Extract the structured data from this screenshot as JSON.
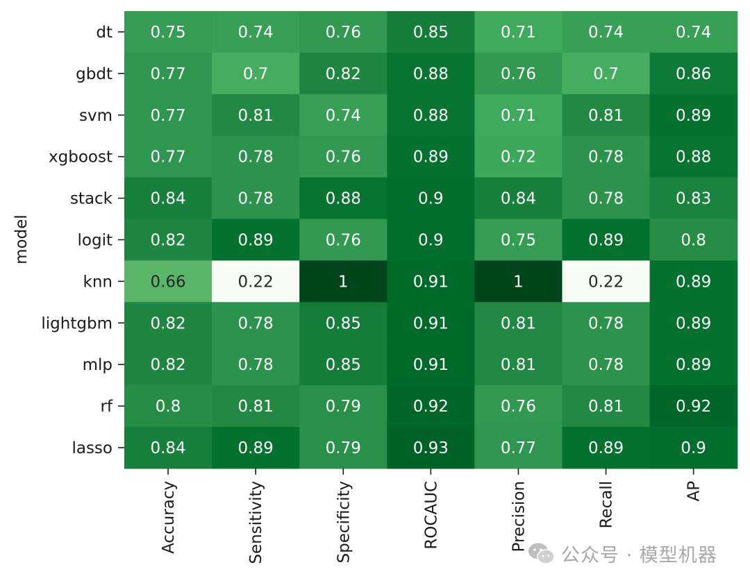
{
  "chart_data": {
    "type": "heatmap",
    "title": "",
    "xlabel": "",
    "ylabel": "model",
    "columns": [
      "Accuracy",
      "Sensitivity",
      "Specificity",
      "ROCAUC",
      "Precision",
      "Recall",
      "AP"
    ],
    "rows": [
      "dt",
      "gbdt",
      "svm",
      "xgboost",
      "stack",
      "logit",
      "knn",
      "lightgbm",
      "mlp",
      "rf",
      "lasso"
    ],
    "values": [
      [
        0.75,
        0.74,
        0.76,
        0.85,
        0.71,
        0.74,
        0.74
      ],
      [
        0.77,
        0.7,
        0.82,
        0.88,
        0.76,
        0.7,
        0.86
      ],
      [
        0.77,
        0.81,
        0.74,
        0.88,
        0.71,
        0.81,
        0.89
      ],
      [
        0.77,
        0.78,
        0.76,
        0.89,
        0.72,
        0.78,
        0.88
      ],
      [
        0.84,
        0.78,
        0.88,
        0.9,
        0.84,
        0.78,
        0.83
      ],
      [
        0.82,
        0.89,
        0.76,
        0.9,
        0.75,
        0.89,
        0.8
      ],
      [
        0.66,
        0.22,
        1,
        0.91,
        1,
        0.22,
        0.89
      ],
      [
        0.82,
        0.78,
        0.85,
        0.91,
        0.81,
        0.78,
        0.89
      ],
      [
        0.82,
        0.78,
        0.85,
        0.91,
        0.81,
        0.78,
        0.89
      ],
      [
        0.8,
        0.81,
        0.79,
        0.92,
        0.76,
        0.81,
        0.92
      ],
      [
        0.84,
        0.89,
        0.79,
        0.93,
        0.77,
        0.89,
        0.9
      ]
    ],
    "colormap": "Greens",
    "vmin": 0.22,
    "vmax": 1,
    "annotations": true,
    "colorbar": false
  },
  "watermark": {
    "text": "公众号 · 模型机器",
    "icon": "wechat-icon"
  },
  "colors": {
    "text_light": "#ffffff",
    "text_dark": "#262626",
    "axis": "#1a1a1a"
  }
}
